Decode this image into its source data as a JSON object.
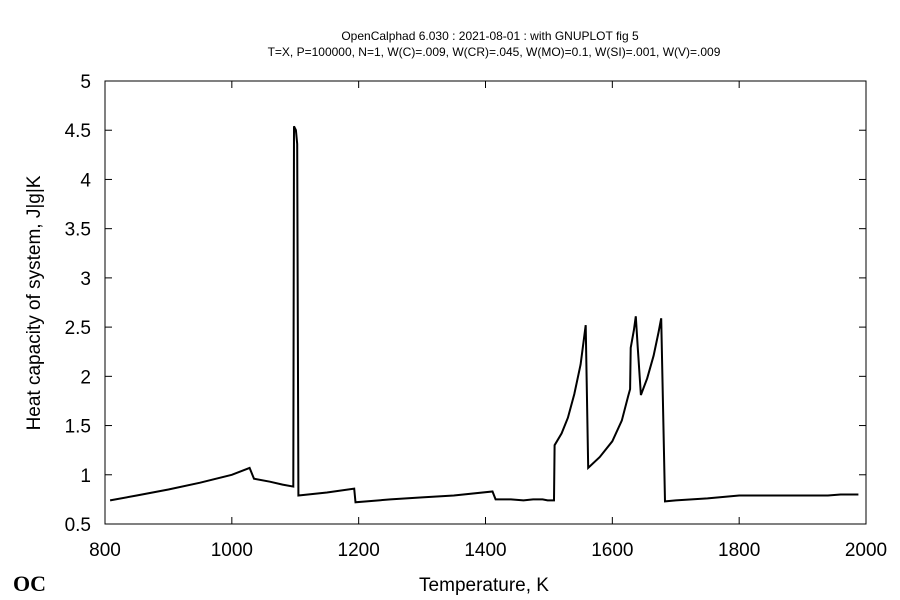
{
  "chart_data": {
    "type": "line",
    "title": "OpenCalphad    6.030 :  2021-08-01 : with GNUPLOT fig 5",
    "subtitle": "T=X,  P=100000, N=1, W(C)=.009, W(CR)=.045, W(MO)=0.1, W(SI)=.001, W(V)=.009",
    "xlabel": "Temperature, K",
    "ylabel": "Heat capacity of system, J|g|K",
    "xlim": [
      800,
      2000
    ],
    "ylim": [
      0.5,
      5
    ],
    "xticks": [
      800,
      1000,
      1200,
      1400,
      1600,
      1800,
      2000
    ],
    "xtick_labels": [
      "800",
      "1000",
      "1200",
      "1400",
      "1600",
      "1800",
      "2000"
    ],
    "yticks": [
      0.5,
      1,
      1.5,
      2,
      2.5,
      3,
      3.5,
      4,
      4.5,
      5
    ],
    "ytick_labels": [
      "0.5",
      "1",
      "1.5",
      "2",
      "2.5",
      "3",
      "3.5",
      "4",
      "4.5",
      "5"
    ],
    "grid": false,
    "series": [
      {
        "color": "#000000",
        "points": [
          [
            808,
            0.74
          ],
          [
            850,
            0.79
          ],
          [
            900,
            0.85
          ],
          [
            950,
            0.92
          ],
          [
            1000,
            1.0
          ],
          [
            1028,
            1.07
          ],
          [
            1035,
            0.96
          ],
          [
            1060,
            0.93
          ],
          [
            1080,
            0.9
          ],
          [
            1097,
            0.88
          ],
          [
            1098,
            4.54
          ],
          [
            1101,
            4.5
          ],
          [
            1103,
            4.36
          ],
          [
            1105,
            0.79
          ],
          [
            1150,
            0.82
          ],
          [
            1193,
            0.86
          ],
          [
            1195,
            0.72
          ],
          [
            1250,
            0.75
          ],
          [
            1300,
            0.77
          ],
          [
            1350,
            0.79
          ],
          [
            1411,
            0.83
          ],
          [
            1416,
            0.75
          ],
          [
            1440,
            0.75
          ],
          [
            1460,
            0.74
          ],
          [
            1475,
            0.75
          ],
          [
            1490,
            0.75
          ],
          [
            1498,
            0.74
          ],
          [
            1508,
            0.74
          ],
          [
            1509,
            1.3
          ],
          [
            1520,
            1.42
          ],
          [
            1530,
            1.58
          ],
          [
            1540,
            1.82
          ],
          [
            1550,
            2.12
          ],
          [
            1558,
            2.52
          ],
          [
            1562,
            1.07
          ],
          [
            1580,
            1.18
          ],
          [
            1600,
            1.34
          ],
          [
            1615,
            1.55
          ],
          [
            1625,
            1.8
          ],
          [
            1628,
            1.87
          ],
          [
            1629,
            2.29
          ],
          [
            1634,
            2.47
          ],
          [
            1637,
            2.61
          ],
          [
            1640,
            2.3
          ],
          [
            1645,
            1.81
          ],
          [
            1655,
            1.98
          ],
          [
            1665,
            2.21
          ],
          [
            1673,
            2.45
          ],
          [
            1677,
            2.59
          ],
          [
            1683,
            0.73
          ],
          [
            1700,
            0.74
          ],
          [
            1750,
            0.76
          ],
          [
            1800,
            0.79
          ],
          [
            1820,
            0.79
          ],
          [
            1850,
            0.79
          ],
          [
            1900,
            0.79
          ],
          [
            1940,
            0.79
          ],
          [
            1960,
            0.8
          ],
          [
            1988,
            0.8
          ]
        ]
      }
    ]
  },
  "logo_text": "OC"
}
